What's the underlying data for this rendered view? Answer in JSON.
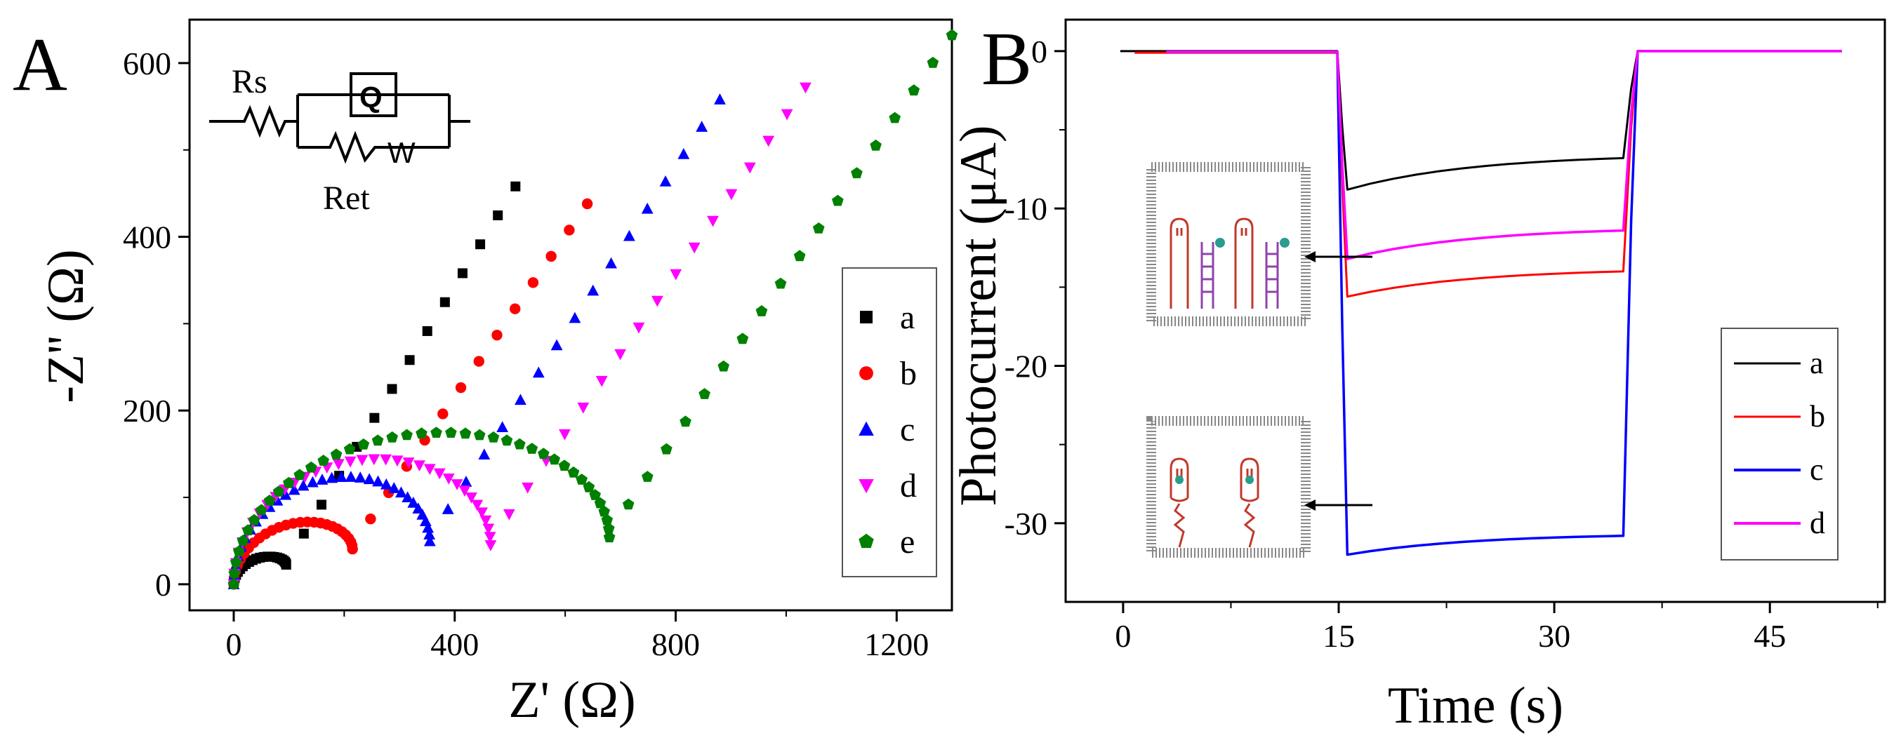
{
  "colors": {
    "a": "#000000",
    "b": "#ff0000",
    "c": "#0000ff",
    "d": "#ff00ff",
    "e": "#008000",
    "probe": "#c0392b",
    "hybrid": "#8e44ad",
    "dot": "#2a9d8f"
  },
  "chart_data": [
    {
      "panel": "A",
      "type": "scatter",
      "xlabel": "Z' (Ω)",
      "ylabel": "-Z'' (Ω)",
      "xlim": [
        -80,
        1300
      ],
      "ylim": [
        -30,
        650
      ],
      "xticks": [
        0,
        400,
        800,
        1200
      ],
      "yticks": [
        0,
        200,
        400,
        600
      ],
      "legend_position": "bottom-right",
      "circuit": {
        "Rs": "Rs",
        "Q": "Q",
        "W": "W",
        "Ret": "Ret"
      },
      "series": [
        {
          "name": "a",
          "marker": "square",
          "Rs": 0,
          "Rct": 95,
          "arc_peak": 25,
          "wy0": 25,
          "wx1": 510,
          "wy1": 458,
          "n_arc": 22,
          "n_tail": 13
        },
        {
          "name": "b",
          "marker": "circle",
          "Rs": 0,
          "Rct": 215,
          "arc_peak": 60,
          "wy0": 45,
          "wx1": 640,
          "wy1": 438,
          "n_arc": 26,
          "n_tail": 13
        },
        {
          "name": "c",
          "marker": "triangle-up",
          "Rs": 0,
          "Rct": 355,
          "arc_peak": 110,
          "wy0": 55,
          "wx1": 880,
          "wy1": 558,
          "n_arc": 32,
          "n_tail": 16
        },
        {
          "name": "d",
          "marker": "triangle-down",
          "Rs": 0,
          "Rct": 465,
          "arc_peak": 132,
          "wy0": 50,
          "wx1": 1035,
          "wy1": 572,
          "n_arc": 34,
          "n_tail": 17
        },
        {
          "name": "e",
          "marker": "pentagon",
          "Rs": 0,
          "Rct": 680,
          "arc_peak": 160,
          "wy0": 60,
          "wx1": 1300,
          "wy1": 632,
          "n_arc": 40,
          "n_tail": 18
        }
      ]
    },
    {
      "panel": "B",
      "type": "line",
      "xlabel": "Time (s)",
      "ylabel": "Photocurrent (μA)",
      "xlim": [
        -4,
        53
      ],
      "ylim": [
        -35,
        2
      ],
      "xticks": [
        0,
        15,
        30,
        45
      ],
      "yticks": [
        0,
        -10,
        -20,
        -30
      ],
      "light_on": 15,
      "light_off": 35,
      "legend_position": "bottom-right",
      "series": [
        {
          "name": "a",
          "x_start": -0.2,
          "dark_current": 0.0,
          "peak": -8.8,
          "end": -6.8
        },
        {
          "name": "b",
          "x_start": 0.8,
          "dark_current": -0.1,
          "peak": -15.6,
          "end": -14.0
        },
        {
          "name": "c",
          "x_start": 3.0,
          "dark_current": -0.05,
          "peak": -32.0,
          "end": -30.8
        },
        {
          "name": "d",
          "x_start": 3.0,
          "dark_current": -0.05,
          "peak": -13.2,
          "end": -11.4
        }
      ]
    }
  ]
}
